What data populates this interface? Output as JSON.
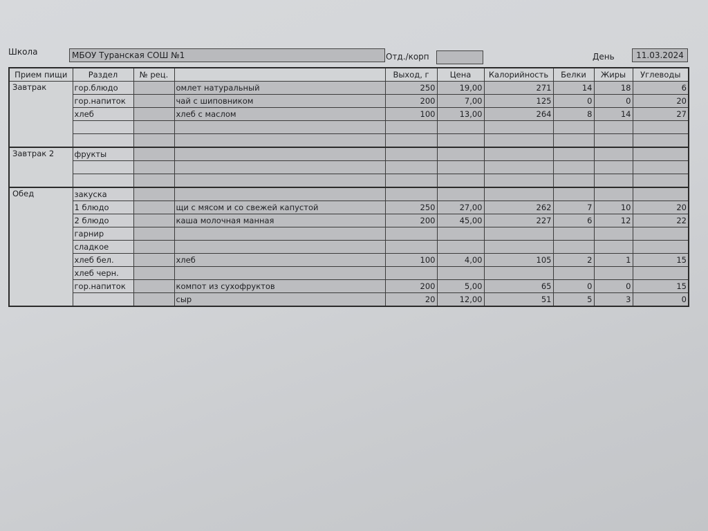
{
  "header": {
    "school_label": "Школа",
    "school_value": "МБОУ Туранская СОШ №1",
    "dept_label": "Отд./корп",
    "dept_value": "",
    "day_label": "День",
    "day_value": "11.03.2024"
  },
  "table": {
    "columns": [
      "Прием пищи",
      "Раздел",
      "№ рец.",
      "",
      "Выход, г",
      "Цена",
      "Калорийность",
      "Белки",
      "Жиры",
      "Углеводы"
    ],
    "groups": [
      {
        "meal": "Завтрак",
        "rows": [
          [
            "гор.блюдо",
            "",
            "омлет натуральный",
            "250",
            "19,00",
            "271",
            "14",
            "18",
            "6"
          ],
          [
            "гор.напиток",
            "",
            "чай с шиповником",
            "200",
            "7,00",
            "125",
            "0",
            "0",
            "20"
          ],
          [
            "хлеб",
            "",
            "хлеб с маслом",
            "100",
            "13,00",
            "264",
            "8",
            "14",
            "27"
          ],
          [
            "",
            "",
            "",
            "",
            "",
            "",
            "",
            "",
            ""
          ],
          [
            "",
            "",
            "",
            "",
            "",
            "",
            "",
            "",
            ""
          ]
        ]
      },
      {
        "meal": "Завтрак 2",
        "rows": [
          [
            "фрукты",
            "",
            "",
            "",
            "",
            "",
            "",
            "",
            ""
          ],
          [
            "",
            "",
            "",
            "",
            "",
            "",
            "",
            "",
            ""
          ],
          [
            "",
            "",
            "",
            "",
            "",
            "",
            "",
            "",
            ""
          ]
        ]
      },
      {
        "meal": "Обед",
        "rows": [
          [
            "закуска",
            "",
            "",
            "",
            "",
            "",
            "",
            "",
            ""
          ],
          [
            "1 блюдо",
            "",
            "щи с мясом и со свежей капустой",
            "250",
            "27,00",
            "262",
            "7",
            "10",
            "20"
          ],
          [
            "2 блюдо",
            "",
            "каша молочная манная",
            "200",
            "45,00",
            "227",
            "6",
            "12",
            "22"
          ],
          [
            "гарнир",
            "",
            "",
            "",
            "",
            "",
            "",
            "",
            ""
          ],
          [
            "сладкое",
            "",
            "",
            "",
            "",
            "",
            "",
            "",
            ""
          ],
          [
            "хлеб бел.",
            "",
            "хлеб",
            "100",
            "4,00",
            "105",
            "2",
            "1",
            "15"
          ],
          [
            "хлеб черн.",
            "",
            "",
            "",
            "",
            "",
            "",
            "",
            ""
          ],
          [
            "гор.напиток",
            "",
            "компот из сухофруктов",
            "200",
            "5,00",
            "65",
            "0",
            "0",
            "15"
          ],
          [
            "",
            "",
            "сыр",
            "20",
            "12,00",
            "51",
            "5",
            "3",
            "0"
          ]
        ]
      }
    ]
  }
}
